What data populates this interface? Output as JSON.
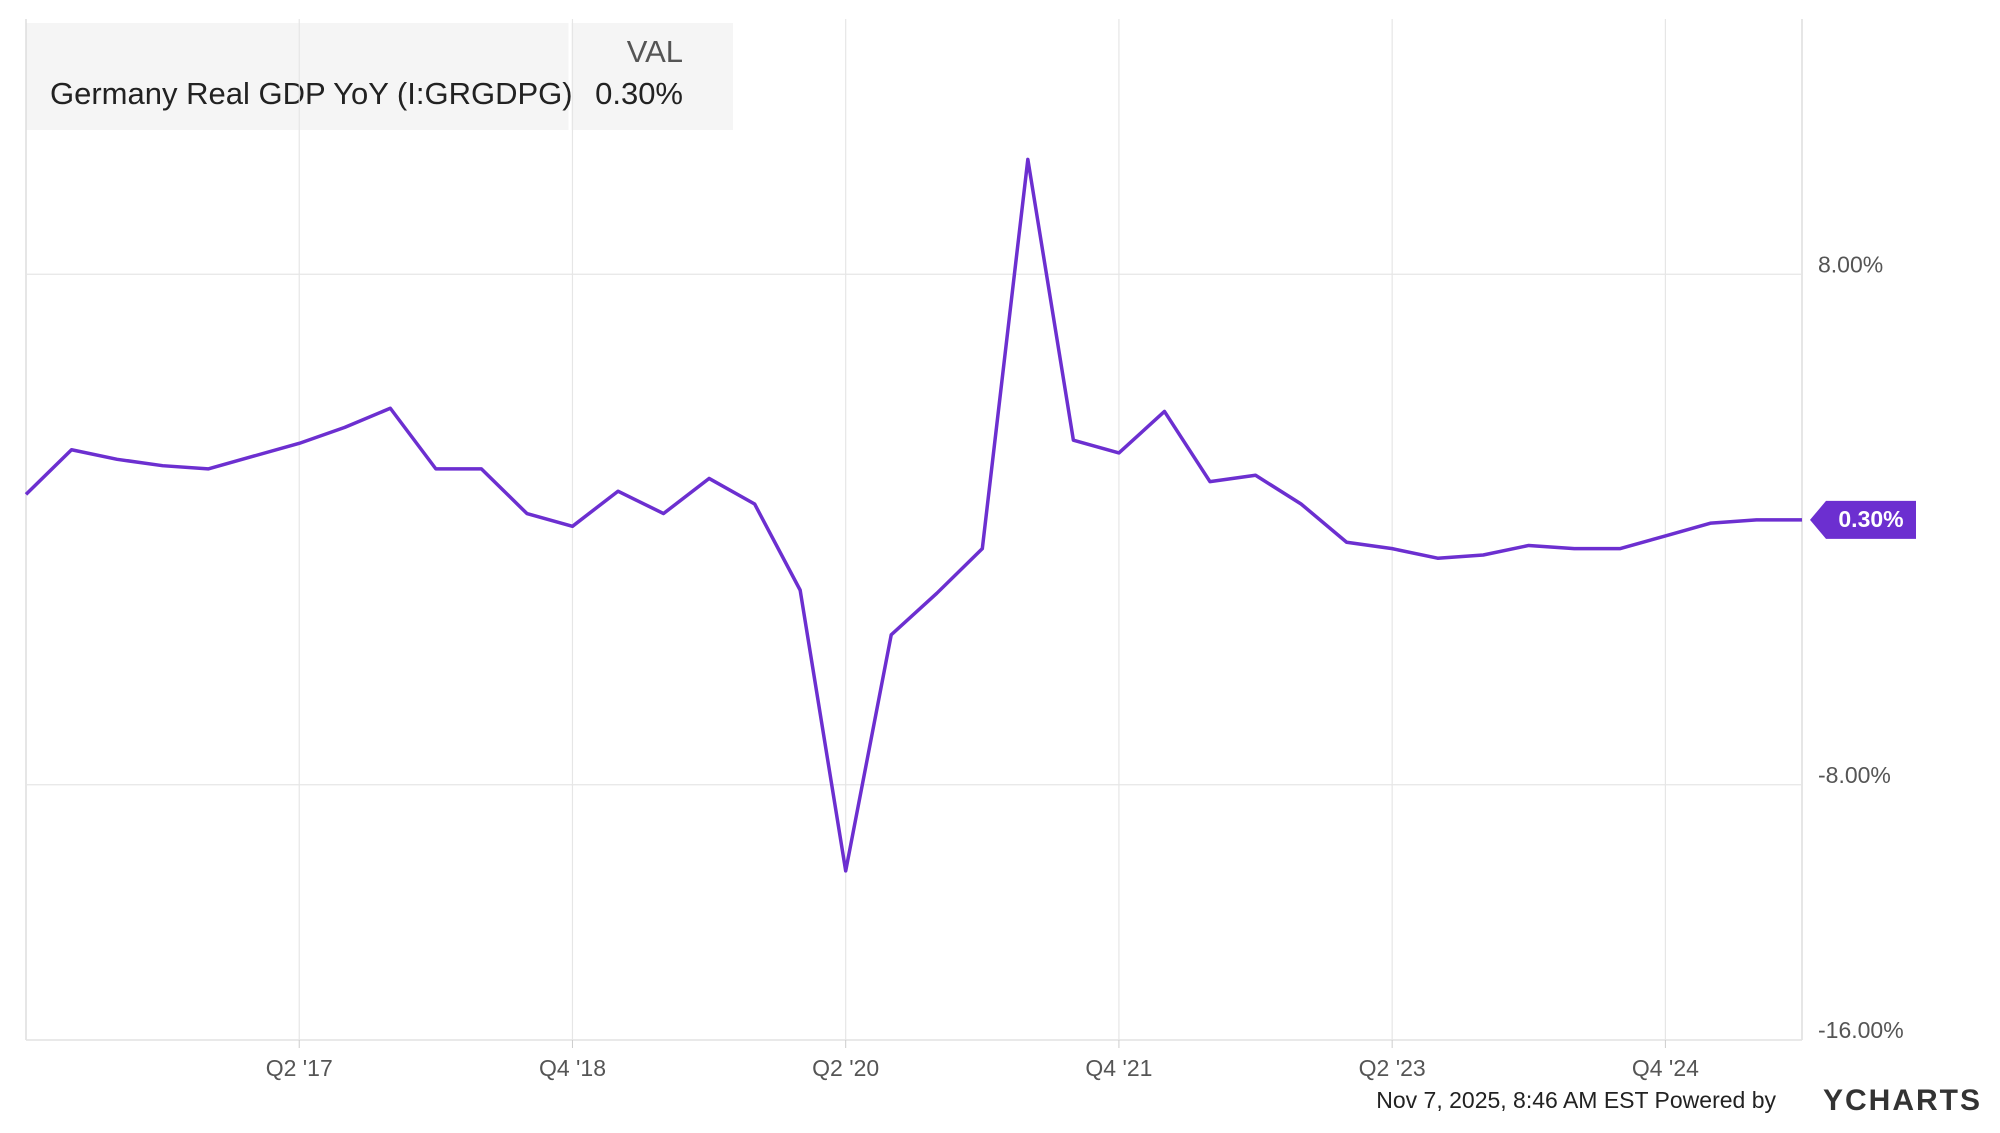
{
  "chart_data": {
    "type": "line",
    "categories": [
      null,
      null,
      null,
      null,
      null,
      null,
      "Q2 '17",
      null,
      null,
      null,
      null,
      null,
      "Q4 '18",
      null,
      null,
      null,
      null,
      null,
      "Q2 '20",
      null,
      null,
      null,
      null,
      null,
      "Q4 '21",
      null,
      null,
      null,
      null,
      null,
      "Q2 '23",
      null,
      null,
      null,
      null,
      null,
      "Q4 '24",
      null,
      null,
      null
    ],
    "series": [
      {
        "name": "Germany Real GDP YoY (I:GRGDPG)",
        "color": "#6c2fd0",
        "values": [
          1.1,
          2.5,
          2.2,
          2.0,
          1.9,
          2.3,
          2.7,
          3.2,
          3.8,
          1.9,
          1.9,
          0.5,
          0.1,
          1.2,
          0.5,
          1.6,
          0.8,
          -1.9,
          -10.7,
          -3.3,
          -2.0,
          -0.6,
          11.6,
          2.8,
          2.4,
          3.7,
          1.5,
          1.7,
          0.8,
          -0.4,
          -0.6,
          -0.9,
          -0.8,
          -0.5,
          -0.6,
          -0.6,
          -0.2,
          0.2,
          0.3,
          0.3
        ]
      }
    ],
    "legend": {
      "header": "VAL",
      "value": 0.3,
      "value_label": "0.30%"
    },
    "ylim": [
      -16,
      16
    ],
    "yticks": [
      {
        "value": -16,
        "label": "-16.00%"
      },
      {
        "value": -8,
        "label": "-8.00%"
      },
      {
        "value": 8,
        "label": "8.00%"
      }
    ],
    "grid": true,
    "footer": {
      "timestamp": "Nov 7, 2025, 8:46 AM EST Powered by",
      "brand": "YCHARTS"
    }
  }
}
